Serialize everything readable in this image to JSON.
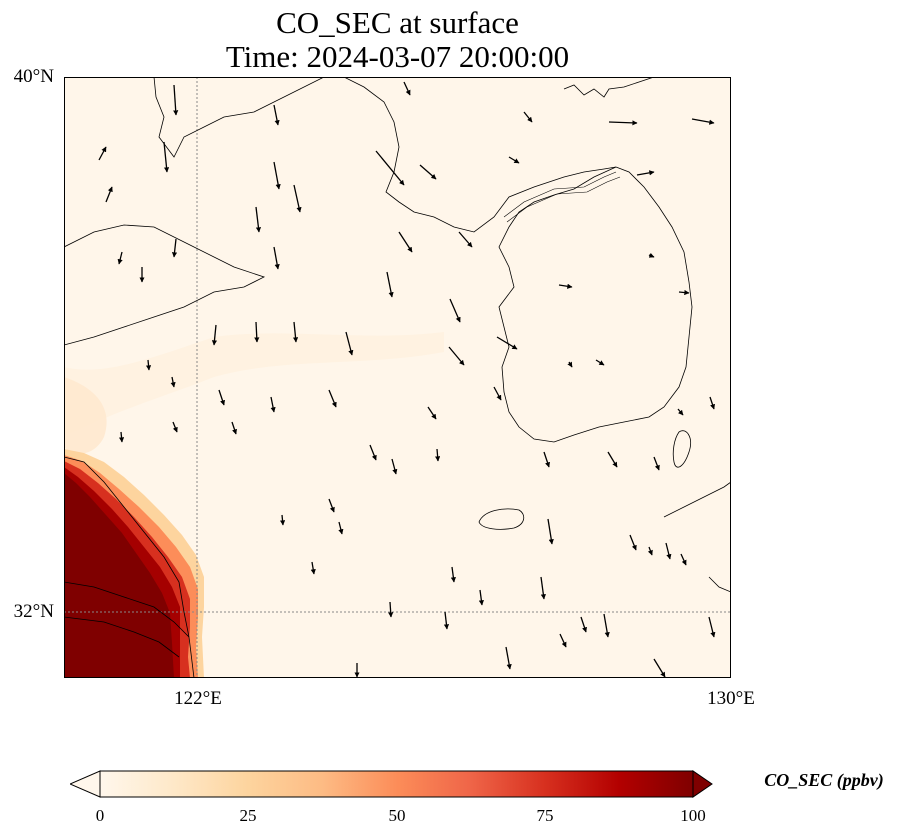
{
  "title": {
    "line1": "CO_SEC at surface",
    "line2": "Time: 2024-03-07 20:00:00"
  },
  "axes": {
    "lat_labels": [
      "40°N",
      "32°N"
    ],
    "lon_labels": [
      "122°E",
      "130°E"
    ],
    "lat_range": [
      31,
      40
    ],
    "lon_range": [
      120,
      130
    ],
    "gridlines": {
      "style": "dotted",
      "lat": [
        32
      ],
      "lon": [
        122
      ]
    }
  },
  "colorbar": {
    "label": "CO_SEC (ppbv)",
    "ticks": [
      "0",
      "25",
      "50",
      "75",
      "100"
    ],
    "min": 0,
    "max": 100,
    "colormap": "OrRd",
    "extend": "both",
    "colors": [
      "#fff7ec",
      "#fee8c8",
      "#fdd49e",
      "#fdbb84",
      "#fc8d59",
      "#ef6548",
      "#d7301f",
      "#b30000",
      "#7f0000"
    ]
  },
  "field": {
    "background_value_ppbv": 1,
    "high_region": "southwest corner (Yangtze River Delta coast), values >= 100 ppbv",
    "low_plume": "faint plume off Shandong peninsula, ~5 ppbv"
  },
  "wind_vectors": {
    "description": "black quiver arrows showing surface wind, predominantly from the north/northwest"
  }
}
